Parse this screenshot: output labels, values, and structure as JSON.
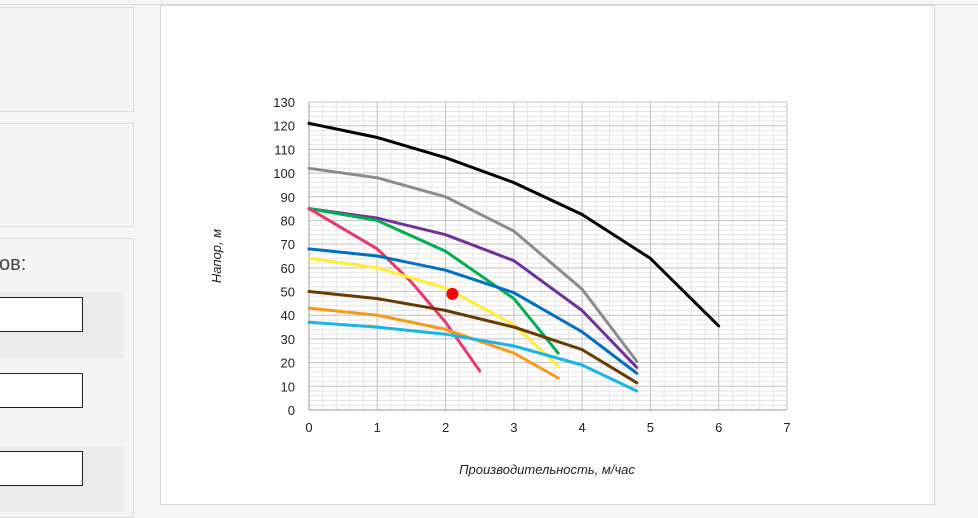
{
  "sidebar": {
    "heading_fragment": "ов:"
  },
  "chart_data": {
    "type": "line",
    "xlabel": "Производительность, м/час",
    "ylabel": "Напор, м",
    "xlim": [
      0,
      7
    ],
    "ylim": [
      0,
      130
    ],
    "x_ticks": [
      0,
      1,
      2,
      3,
      4,
      5,
      6,
      7
    ],
    "y_ticks": [
      0,
      10,
      20,
      30,
      40,
      50,
      60,
      70,
      80,
      90,
      100,
      110,
      120,
      130
    ],
    "grid": true,
    "minor_grid": true,
    "series": [
      {
        "color": "#000000",
        "points": [
          [
            0,
            121
          ],
          [
            1,
            115
          ],
          [
            2,
            106.5
          ],
          [
            3,
            96
          ],
          [
            4,
            82.5
          ],
          [
            5,
            64
          ],
          [
            6,
            35.5
          ]
        ]
      },
      {
        "color": "#8c8c8c",
        "points": [
          [
            0,
            102
          ],
          [
            1,
            98
          ],
          [
            2,
            90
          ],
          [
            3,
            75.5
          ],
          [
            4,
            51
          ],
          [
            4.8,
            20.5
          ]
        ]
      },
      {
        "color": "#7030a0",
        "points": [
          [
            0,
            85
          ],
          [
            1,
            81
          ],
          [
            2,
            74
          ],
          [
            3,
            63
          ],
          [
            4,
            42
          ],
          [
            4.8,
            18
          ]
        ]
      },
      {
        "color": "#00b050",
        "points": [
          [
            0,
            85
          ],
          [
            1,
            80
          ],
          [
            2,
            67
          ],
          [
            3,
            47
          ],
          [
            3.65,
            24
          ]
        ]
      },
      {
        "color": "#e6386e",
        "points": [
          [
            0,
            85
          ],
          [
            1,
            68
          ],
          [
            1.5,
            54
          ],
          [
            2,
            37
          ],
          [
            2.5,
            16.5
          ]
        ]
      },
      {
        "color": "#0070c0",
        "points": [
          [
            0,
            68
          ],
          [
            1,
            65
          ],
          [
            2,
            59
          ],
          [
            3,
            49.5
          ],
          [
            4,
            33
          ],
          [
            4.8,
            15.5
          ]
        ]
      },
      {
        "color": "#ffee33",
        "points": [
          [
            0,
            64
          ],
          [
            1,
            60
          ],
          [
            2,
            51.5
          ],
          [
            3,
            36
          ],
          [
            3.65,
            18.5
          ]
        ]
      },
      {
        "color": "#6b3a00",
        "points": [
          [
            0,
            50
          ],
          [
            1,
            47
          ],
          [
            2,
            42
          ],
          [
            3,
            35
          ],
          [
            4,
            25.5
          ],
          [
            4.8,
            11.5
          ]
        ]
      },
      {
        "color": "#f59a1a",
        "points": [
          [
            0,
            43
          ],
          [
            1,
            40
          ],
          [
            2,
            34
          ],
          [
            3,
            24
          ],
          [
            3.65,
            13.5
          ]
        ]
      },
      {
        "color": "#19b5e6",
        "points": [
          [
            0,
            37
          ],
          [
            1,
            35
          ],
          [
            2,
            32
          ],
          [
            3,
            27
          ],
          [
            4,
            19
          ],
          [
            4.8,
            8
          ]
        ]
      }
    ],
    "highlight_point": {
      "x": 2.1,
      "y": 49,
      "color": "#ff0000"
    }
  }
}
